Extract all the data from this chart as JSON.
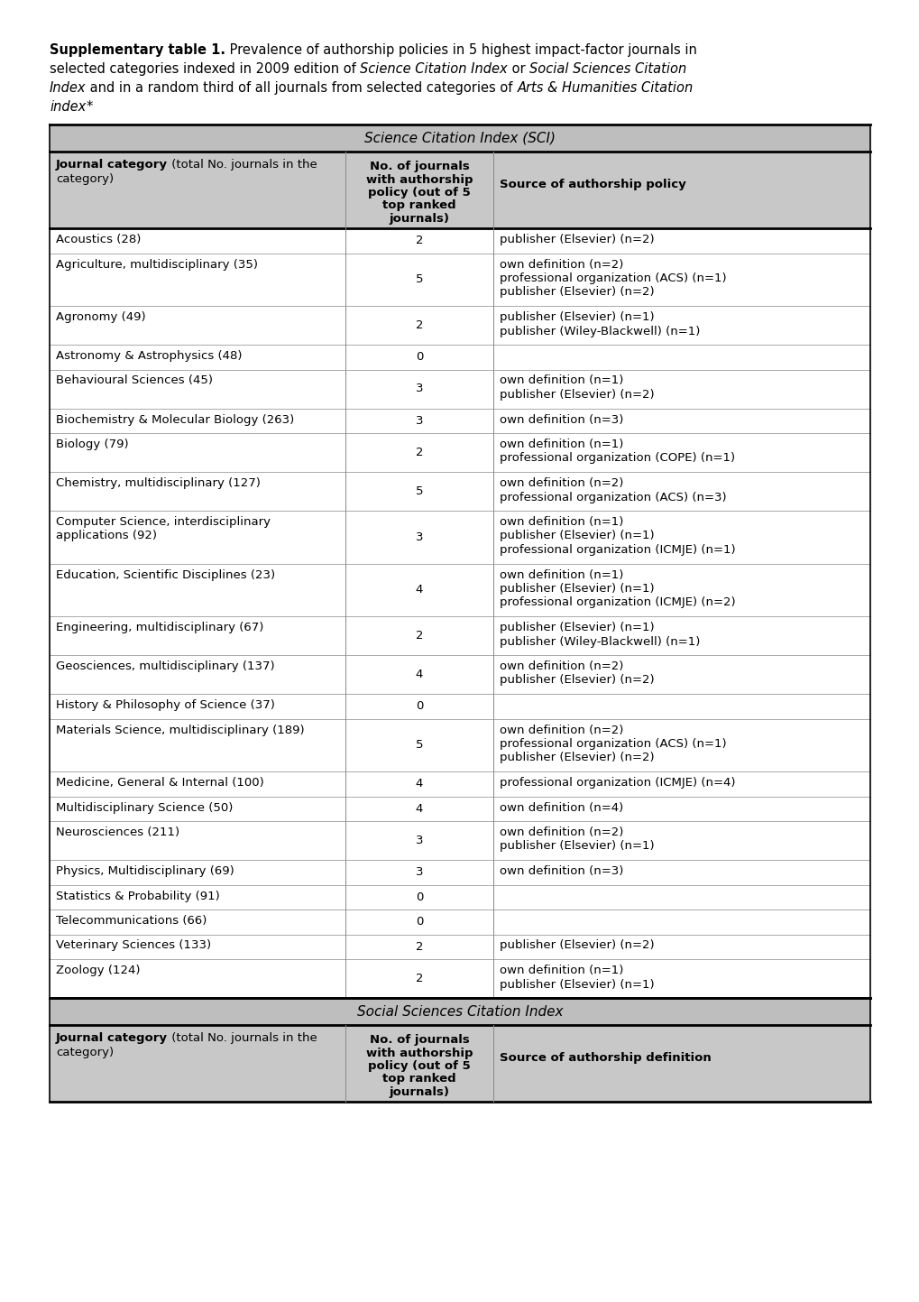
{
  "section1_title": "Science Citation Index (SCI)",
  "section2_title": "Social Sciences Citation Index",
  "col1_header_bold": "Journal category",
  "col1_header_normal": " (total No. journals in the\ncategory)",
  "col2_header_lines": [
    "No. of journals",
    "with authorship",
    "policy (out of 5",
    "top ranked",
    "journals)"
  ],
  "col3_header_sci": "Source of authorship policy",
  "col3_header_ssci": "Source of authorship definition",
  "header_bg": "#c8c8c8",
  "section_header_bg": "#bebebe",
  "text_color": "#000000",
  "table_rows_sci": [
    {
      "cat": "Acoustics (28)",
      "n": "2",
      "sources": [
        "publisher (Elsevier) (n=2)"
      ]
    },
    {
      "cat": "Agriculture, multidisciplinary (35)",
      "n": "5",
      "sources": [
        "own definition (n=2)",
        "professional organization (ACS) (n=1)",
        "publisher (Elsevier) (n=2)"
      ]
    },
    {
      "cat": "Agronomy (49)",
      "n": "2",
      "sources": [
        "publisher (Elsevier) (n=1)",
        "publisher (Wiley-Blackwell) (n=1)"
      ]
    },
    {
      "cat": "Astronomy & Astrophysics (48)",
      "n": "0",
      "sources": []
    },
    {
      "cat": "Behavioural Sciences (45)",
      "n": "3",
      "sources": [
        "own definition (n=1)",
        "publisher (Elsevier) (n=2)"
      ]
    },
    {
      "cat": "Biochemistry & Molecular Biology (263)",
      "n": "3",
      "sources": [
        "own definition (n=3)"
      ]
    },
    {
      "cat": "Biology (79)",
      "n": "2",
      "sources": [
        "own definition (n=1)",
        "professional organization (COPE) (n=1)"
      ]
    },
    {
      "cat": "Chemistry, multidisciplinary (127)",
      "n": "5",
      "sources": [
        "own definition (n=2)",
        "professional organization (ACS) (n=3)"
      ]
    },
    {
      "cat": "Computer Science, interdisciplinary\napplications (92)",
      "n": "3",
      "sources": [
        "own definition (n=1)",
        "publisher (Elsevier) (n=1)",
        "professional organization (ICMJE) (n=1)"
      ]
    },
    {
      "cat": "Education, Scientific Disciplines (23)",
      "n": "4",
      "sources": [
        "own definition (n=1)",
        "publisher (Elsevier) (n=1)",
        "professional organization (ICMJE) (n=2)"
      ]
    },
    {
      "cat": "Engineering, multidisciplinary (67)",
      "n": "2",
      "sources": [
        "publisher (Elsevier) (n=1)",
        "publisher (Wiley-Blackwell) (n=1)"
      ]
    },
    {
      "cat": "Geosciences, multidisciplinary (137)",
      "n": "4",
      "sources": [
        "own definition (n=2)",
        "publisher (Elsevier) (n=2)"
      ]
    },
    {
      "cat": "History & Philosophy of Science (37)",
      "n": "0",
      "sources": []
    },
    {
      "cat": "Materials Science, multidisciplinary (189)",
      "n": "5",
      "sources": [
        "own definition (n=2)",
        "professional organization (ACS) (n=1)",
        "publisher (Elsevier) (n=2)"
      ]
    },
    {
      "cat": "Medicine, General & Internal (100)",
      "n": "4",
      "sources": [
        "professional organization (ICMJE) (n=4)"
      ]
    },
    {
      "cat": "Multidisciplinary Science (50)",
      "n": "4",
      "sources": [
        "own definition (n=4)"
      ]
    },
    {
      "cat": "Neurosciences (211)",
      "n": "3",
      "sources": [
        "own definition (n=2)",
        "publisher (Elsevier) (n=1)"
      ]
    },
    {
      "cat": "Physics, Multidisciplinary (69)",
      "n": "3",
      "sources": [
        "own definition (n=3)"
      ]
    },
    {
      "cat": "Statistics & Probability (91)",
      "n": "0",
      "sources": []
    },
    {
      "cat": "Telecommunications (66)",
      "n": "0",
      "sources": []
    },
    {
      "cat": "Veterinary Sciences (133)",
      "n": "2",
      "sources": [
        "publisher (Elsevier) (n=2)"
      ]
    },
    {
      "cat": "Zoology (124)",
      "n": "2",
      "sources": [
        "own definition (n=1)",
        "publisher (Elsevier) (n=1)"
      ]
    }
  ],
  "figsize": [
    10.2,
    14.43
  ],
  "dpi": 100,
  "caption_parts": [
    [
      [
        "bold",
        "Supplementary table 1."
      ],
      [
        "normal",
        " Prevalence of authorship policies in 5 highest impact-factor journals in"
      ]
    ],
    [
      [
        "normal",
        "selected categories indexed in 2009 edition of "
      ],
      [
        "italic",
        "Science Citation Index"
      ],
      [
        "normal",
        " or "
      ],
      [
        "italic",
        "Social Sciences Citation"
      ]
    ],
    [
      [
        "italic",
        "Index"
      ],
      [
        "normal",
        " and in a random third of all journals from selected categories of "
      ],
      [
        "italic",
        "Arts & Humanities Citation"
      ]
    ],
    [
      [
        "italic",
        "index"
      ],
      [
        "normal",
        "*"
      ]
    ]
  ]
}
